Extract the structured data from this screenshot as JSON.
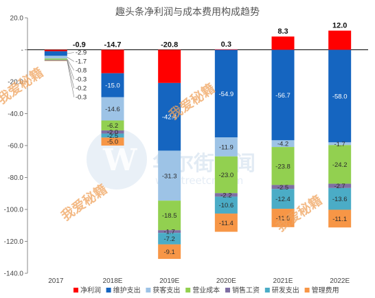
{
  "watermarks": {
    "cn_brand": "华尔街见闻",
    "url": "wallstreetcn.com",
    "logo_letter": "W",
    "stamp": "我爱秘籍"
  },
  "chart_data": {
    "type": "bar",
    "title": "趣头条净利润与成本费用构成趋势",
    "xlabel": "",
    "ylabel": "",
    "ylim": [
      -140,
      20
    ],
    "yticks": [
      20,
      0,
      -20,
      -40,
      -60,
      -80,
      -100,
      -120,
      -140
    ],
    "ytick_labels": [
      "20.0",
      "-",
      "-20.0",
      "-40.0",
      "-60.0",
      "-80.0",
      "-100.0",
      "-120.0",
      "-140.0"
    ],
    "grid": false,
    "legend_position": "bottom",
    "categories": [
      "2017",
      "2018E",
      "2019E",
      "2020E",
      "2021E",
      "2022E"
    ],
    "series": [
      {
        "name": "净利润",
        "color": "#ff0000",
        "values": [
          -0.9,
          -14.7,
          -20.8,
          0.3,
          8.3,
          12.0
        ]
      },
      {
        "name": "维护支出",
        "color": "#1565c0",
        "values": [
          -2.9,
          -15.0,
          -42.4,
          -54.9,
          -56.7,
          -58.0
        ]
      },
      {
        "name": "获客支出",
        "color": "#9dc3e6",
        "values": [
          -1.7,
          -14.6,
          -31.3,
          -11.9,
          -4.2,
          -1.7
        ]
      },
      {
        "name": "营业成本",
        "color": "#92d050",
        "values": [
          -0.8,
          -6.2,
          -18.5,
          -23.0,
          -23.8,
          -24.2
        ]
      },
      {
        "name": "销售工资",
        "color": "#7f6fa3",
        "values": [
          -0.3,
          -2.0,
          -1.7,
          -2.2,
          -2.5,
          -2.7
        ]
      },
      {
        "name": "研发支出",
        "color": "#4bacc6",
        "values": [
          -0.2,
          -2.5,
          -7.2,
          -10.6,
          -12.4,
          -13.6
        ]
      },
      {
        "name": "管理费用",
        "color": "#f79646",
        "values": [
          -0.3,
          -5.0,
          -9.1,
          -11.4,
          -11.5,
          -11.1
        ]
      }
    ],
    "value_labels": [
      [
        "-0.9",
        "-2.9",
        "-1.7",
        "-0.8",
        "-0.3",
        "-0.2",
        "-0.3"
      ],
      [
        "-14.7",
        "-15.0",
        "-14.6",
        "-6.2",
        "-2.0",
        "-2.5",
        "-5.0"
      ],
      [
        "-20.8",
        "-42.4",
        "-31.3",
        "-18.5",
        "-1.7",
        "-7.2",
        "-9.1"
      ],
      [
        "0.3",
        "-54.9",
        "-11.9",
        "-23.0",
        "-2.2",
        "-10.6",
        "-11.4"
      ],
      [
        "8.3",
        "-56.7",
        "-4.2",
        "-23.8",
        "-2.5",
        "-12.4",
        "-11.5"
      ],
      [
        "12.0",
        "-58.0",
        "-1.7",
        "-24.2",
        "-2.7",
        "-13.6",
        "-11.1"
      ]
    ]
  }
}
